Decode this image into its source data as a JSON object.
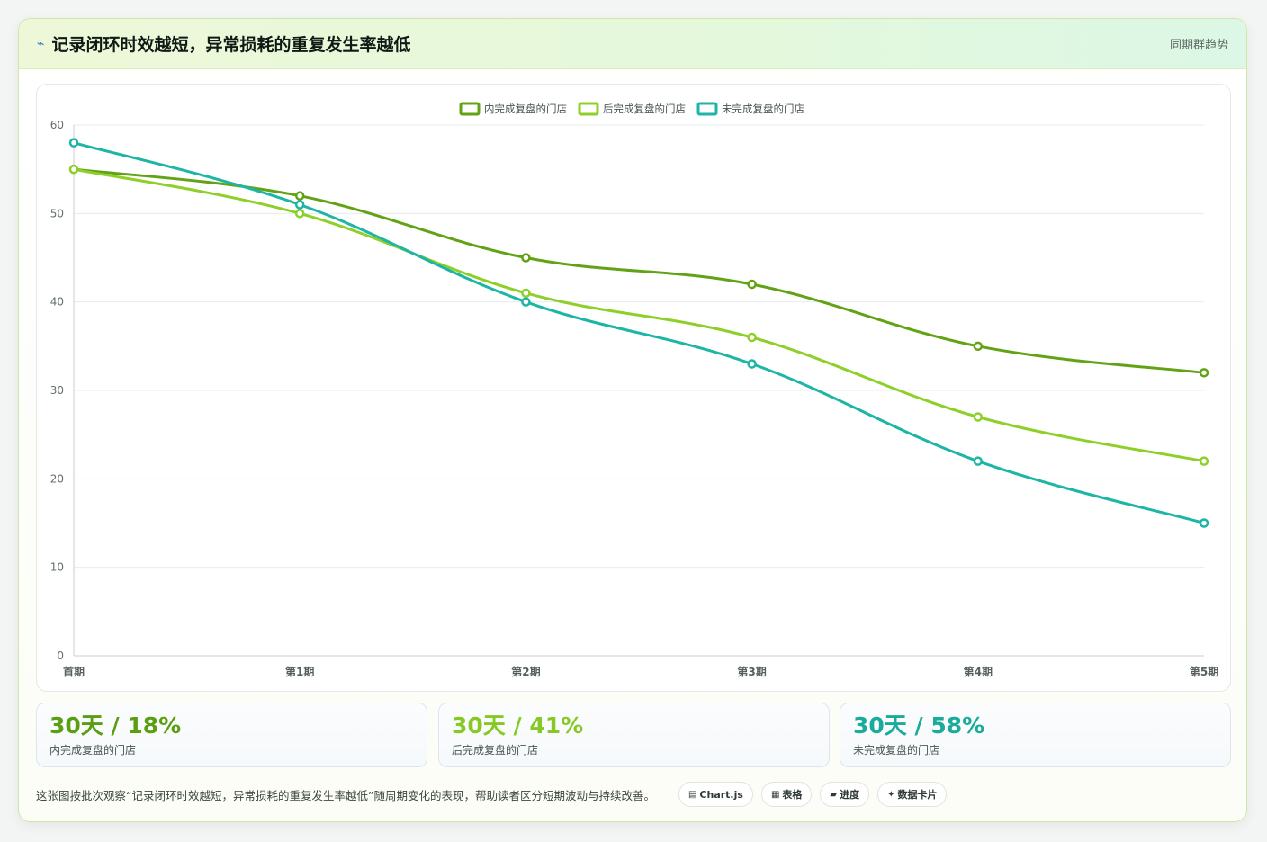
{
  "header": {
    "icon": "pulse-icon",
    "title": "记录闭环时效越短，异常损耗的重复发生率越低",
    "right_label": "同期群趋势"
  },
  "chart_data": {
    "type": "line",
    "categories": [
      "首期",
      "第1期",
      "第2期",
      "第3期",
      "第4期",
      "第5期"
    ],
    "series": [
      {
        "name": "内完成复盘的门店",
        "values": [
          55,
          52,
          45,
          42,
          35,
          32
        ],
        "color": "#62a316"
      },
      {
        "name": "后完成复盘的门店",
        "values": [
          55,
          50,
          41,
          36,
          27,
          22
        ],
        "color": "#8fcf2a"
      },
      {
        "name": "未完成复盘的门店",
        "values": [
          58,
          51,
          40,
          33,
          22,
          15
        ],
        "color": "#1db5a5"
      }
    ],
    "ylim": [
      0,
      60
    ],
    "yticks": [
      0,
      10,
      20,
      30,
      40,
      50,
      60
    ],
    "grid": true,
    "legend": "top-center"
  },
  "stats": [
    {
      "value": "30天 / 18%",
      "label": "内完成复盘的门店",
      "color": "#5a9e12"
    },
    {
      "value": "30天 / 41%",
      "label": "后完成复盘的门店",
      "color": "#86c925"
    },
    {
      "value": "30天 / 58%",
      "label": "未完成复盘的门店",
      "color": "#1aab9c"
    }
  ],
  "footer": {
    "note": "这张图按批次观察“记录闭环时效越短，异常损耗的重复发生率越低”随周期变化的表现，帮助读者区分短期波动与持续改善。",
    "chips": [
      {
        "icon": "chart-icon",
        "glyph": "▤",
        "label": "Chart.js"
      },
      {
        "icon": "table-icon",
        "glyph": "▦",
        "label": "表格"
      },
      {
        "icon": "progress-icon",
        "glyph": "▰",
        "label": "进度"
      },
      {
        "icon": "sparkle-icon",
        "glyph": "✦",
        "label": "数据卡片"
      }
    ]
  }
}
